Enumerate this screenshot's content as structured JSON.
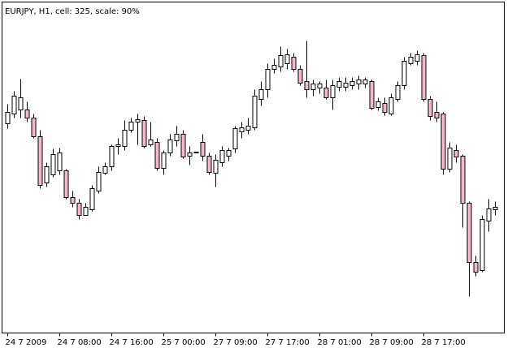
{
  "chart_data": {
    "type": "candlestick",
    "title": "EURJPY, H1, cell: 325, scale: 90%",
    "categories": [
      "24 7 2009",
      null,
      null,
      null,
      null,
      null,
      null,
      null,
      "24 7 08:00",
      null,
      null,
      null,
      null,
      null,
      null,
      null,
      "24 7 16:00",
      null,
      null,
      null,
      null,
      null,
      null,
      null,
      "25 7 00:00",
      null,
      null,
      null,
      null,
      null,
      null,
      null,
      "27 7 09:00",
      null,
      null,
      null,
      null,
      null,
      null,
      null,
      "27 7 17:00",
      null,
      null,
      null,
      null,
      null,
      null,
      null,
      "28 7 01:00",
      null,
      null,
      null,
      null,
      null,
      null,
      null,
      "28 7 09:00",
      null,
      null,
      null,
      null,
      null,
      null,
      null,
      "28 7 17:00",
      null,
      null,
      null,
      null,
      null,
      null,
      null,
      null,
      null,
      null,
      null
    ],
    "open": [
      258,
      270,
      275,
      275,
      265,
      242,
      185,
      195,
      200,
      200,
      167,
      160,
      145,
      152,
      175,
      197,
      205,
      230,
      230,
      250,
      260,
      262,
      232,
      235,
      203,
      222,
      237,
      245,
      218,
      222,
      235,
      218,
      197,
      210,
      218,
      227,
      248,
      250,
      253,
      288,
      300,
      325,
      328,
      332,
      340,
      325,
      310,
      300,
      302,
      302,
      290,
      303,
      303,
      305,
      307,
      307,
      310,
      278,
      283,
      270,
      288,
      305,
      332,
      335,
      342,
      288,
      272,
      270,
      202,
      225,
      218,
      160,
      87,
      77,
      138,
      152
    ],
    "high": [
      282,
      298,
      313,
      285,
      270,
      250,
      210,
      227,
      228,
      202,
      175,
      165,
      160,
      182,
      205,
      210,
      232,
      240,
      262,
      265,
      270,
      267,
      260,
      240,
      225,
      245,
      255,
      250,
      230,
      223,
      245,
      222,
      220,
      230,
      228,
      255,
      260,
      265,
      300,
      310,
      332,
      338,
      353,
      350,
      345,
      330,
      360,
      312,
      310,
      312,
      312,
      315,
      315,
      315,
      317,
      315,
      312,
      290,
      290,
      295,
      310,
      340,
      345,
      348,
      345,
      292,
      285,
      272,
      235,
      232,
      220,
      162,
      95,
      145,
      165,
      162
    ],
    "low": [
      252,
      265,
      265,
      260,
      240,
      178,
      180,
      192,
      195,
      165,
      155,
      140,
      145,
      150,
      172,
      195,
      200,
      220,
      225,
      247,
      232,
      228,
      230,
      200,
      195,
      218,
      230,
      215,
      207,
      222,
      212,
      195,
      180,
      205,
      212,
      222,
      240,
      245,
      250,
      280,
      290,
      320,
      322,
      325,
      322,
      305,
      290,
      292,
      295,
      288,
      275,
      298,
      298,
      300,
      300,
      302,
      275,
      274,
      268,
      268,
      285,
      300,
      330,
      330,
      285,
      262,
      260,
      195,
      198,
      210,
      130,
      45,
      70,
      75,
      125,
      145
    ],
    "close": [
      272,
      292,
      290,
      265,
      242,
      182,
      205,
      220,
      222,
      167,
      160,
      145,
      155,
      178,
      198,
      205,
      230,
      232,
      250,
      260,
      263,
      230,
      238,
      203,
      222,
      238,
      245,
      217,
      222,
      223,
      218,
      198,
      213,
      225,
      225,
      252,
      253,
      255,
      292,
      300,
      325,
      330,
      342,
      343,
      325,
      308,
      300,
      307,
      307,
      290,
      305,
      310,
      308,
      310,
      312,
      312,
      277,
      285,
      272,
      290,
      305,
      335,
      340,
      343,
      288,
      267,
      265,
      202,
      228,
      217,
      160,
      87,
      75,
      140,
      153,
      155
    ],
    "up_color": "#ffffff",
    "down_color": "#f7b9c8",
    "ylim": [
      0,
      408
    ]
  }
}
